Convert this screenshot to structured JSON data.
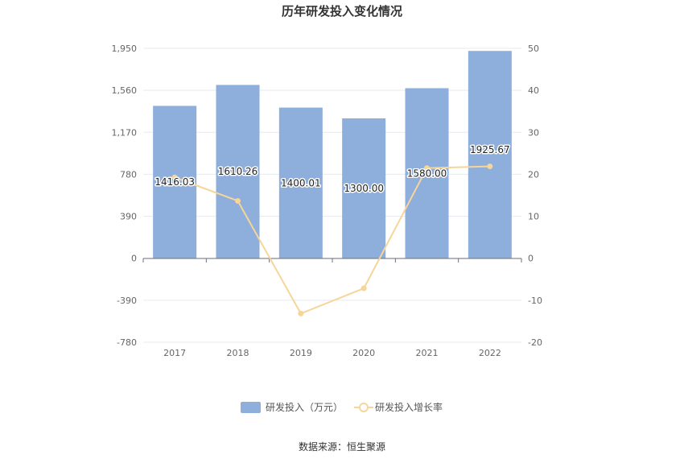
{
  "chart_data": {
    "type": "bar",
    "title": "历年研发投入变化情况",
    "categories": [
      "2017",
      "2018",
      "2019",
      "2020",
      "2021",
      "2022"
    ],
    "series": [
      {
        "name": "研发投入（万元）",
        "type": "bar",
        "axis": "left",
        "values": [
          1416.03,
          1610.26,
          1400.01,
          1300.0,
          1580.0,
          1925.67
        ],
        "labels": [
          "1416.03",
          "1610.26",
          "1400.01",
          "1300.00",
          "1580.00",
          "1925.67"
        ],
        "color": "#8eaedb"
      },
      {
        "name": "研发投入增长率",
        "type": "line",
        "axis": "right",
        "values": [
          19.3,
          13.7,
          -13.1,
          -7.1,
          21.5,
          21.9
        ],
        "color": "#f6d59a"
      }
    ],
    "y_left": {
      "ticks": [
        "1,950",
        "1,560",
        "1,170",
        "780",
        "390",
        "0",
        "-390",
        "-780"
      ],
      "range": [
        -780,
        1950
      ]
    },
    "y_right": {
      "ticks": [
        "50",
        "40",
        "30",
        "20",
        "10",
        "0",
        "-10",
        "-20"
      ],
      "range": [
        -20,
        50
      ]
    },
    "grid": true,
    "legend": "bottom-center",
    "source": "数据来源：恒生聚源"
  }
}
